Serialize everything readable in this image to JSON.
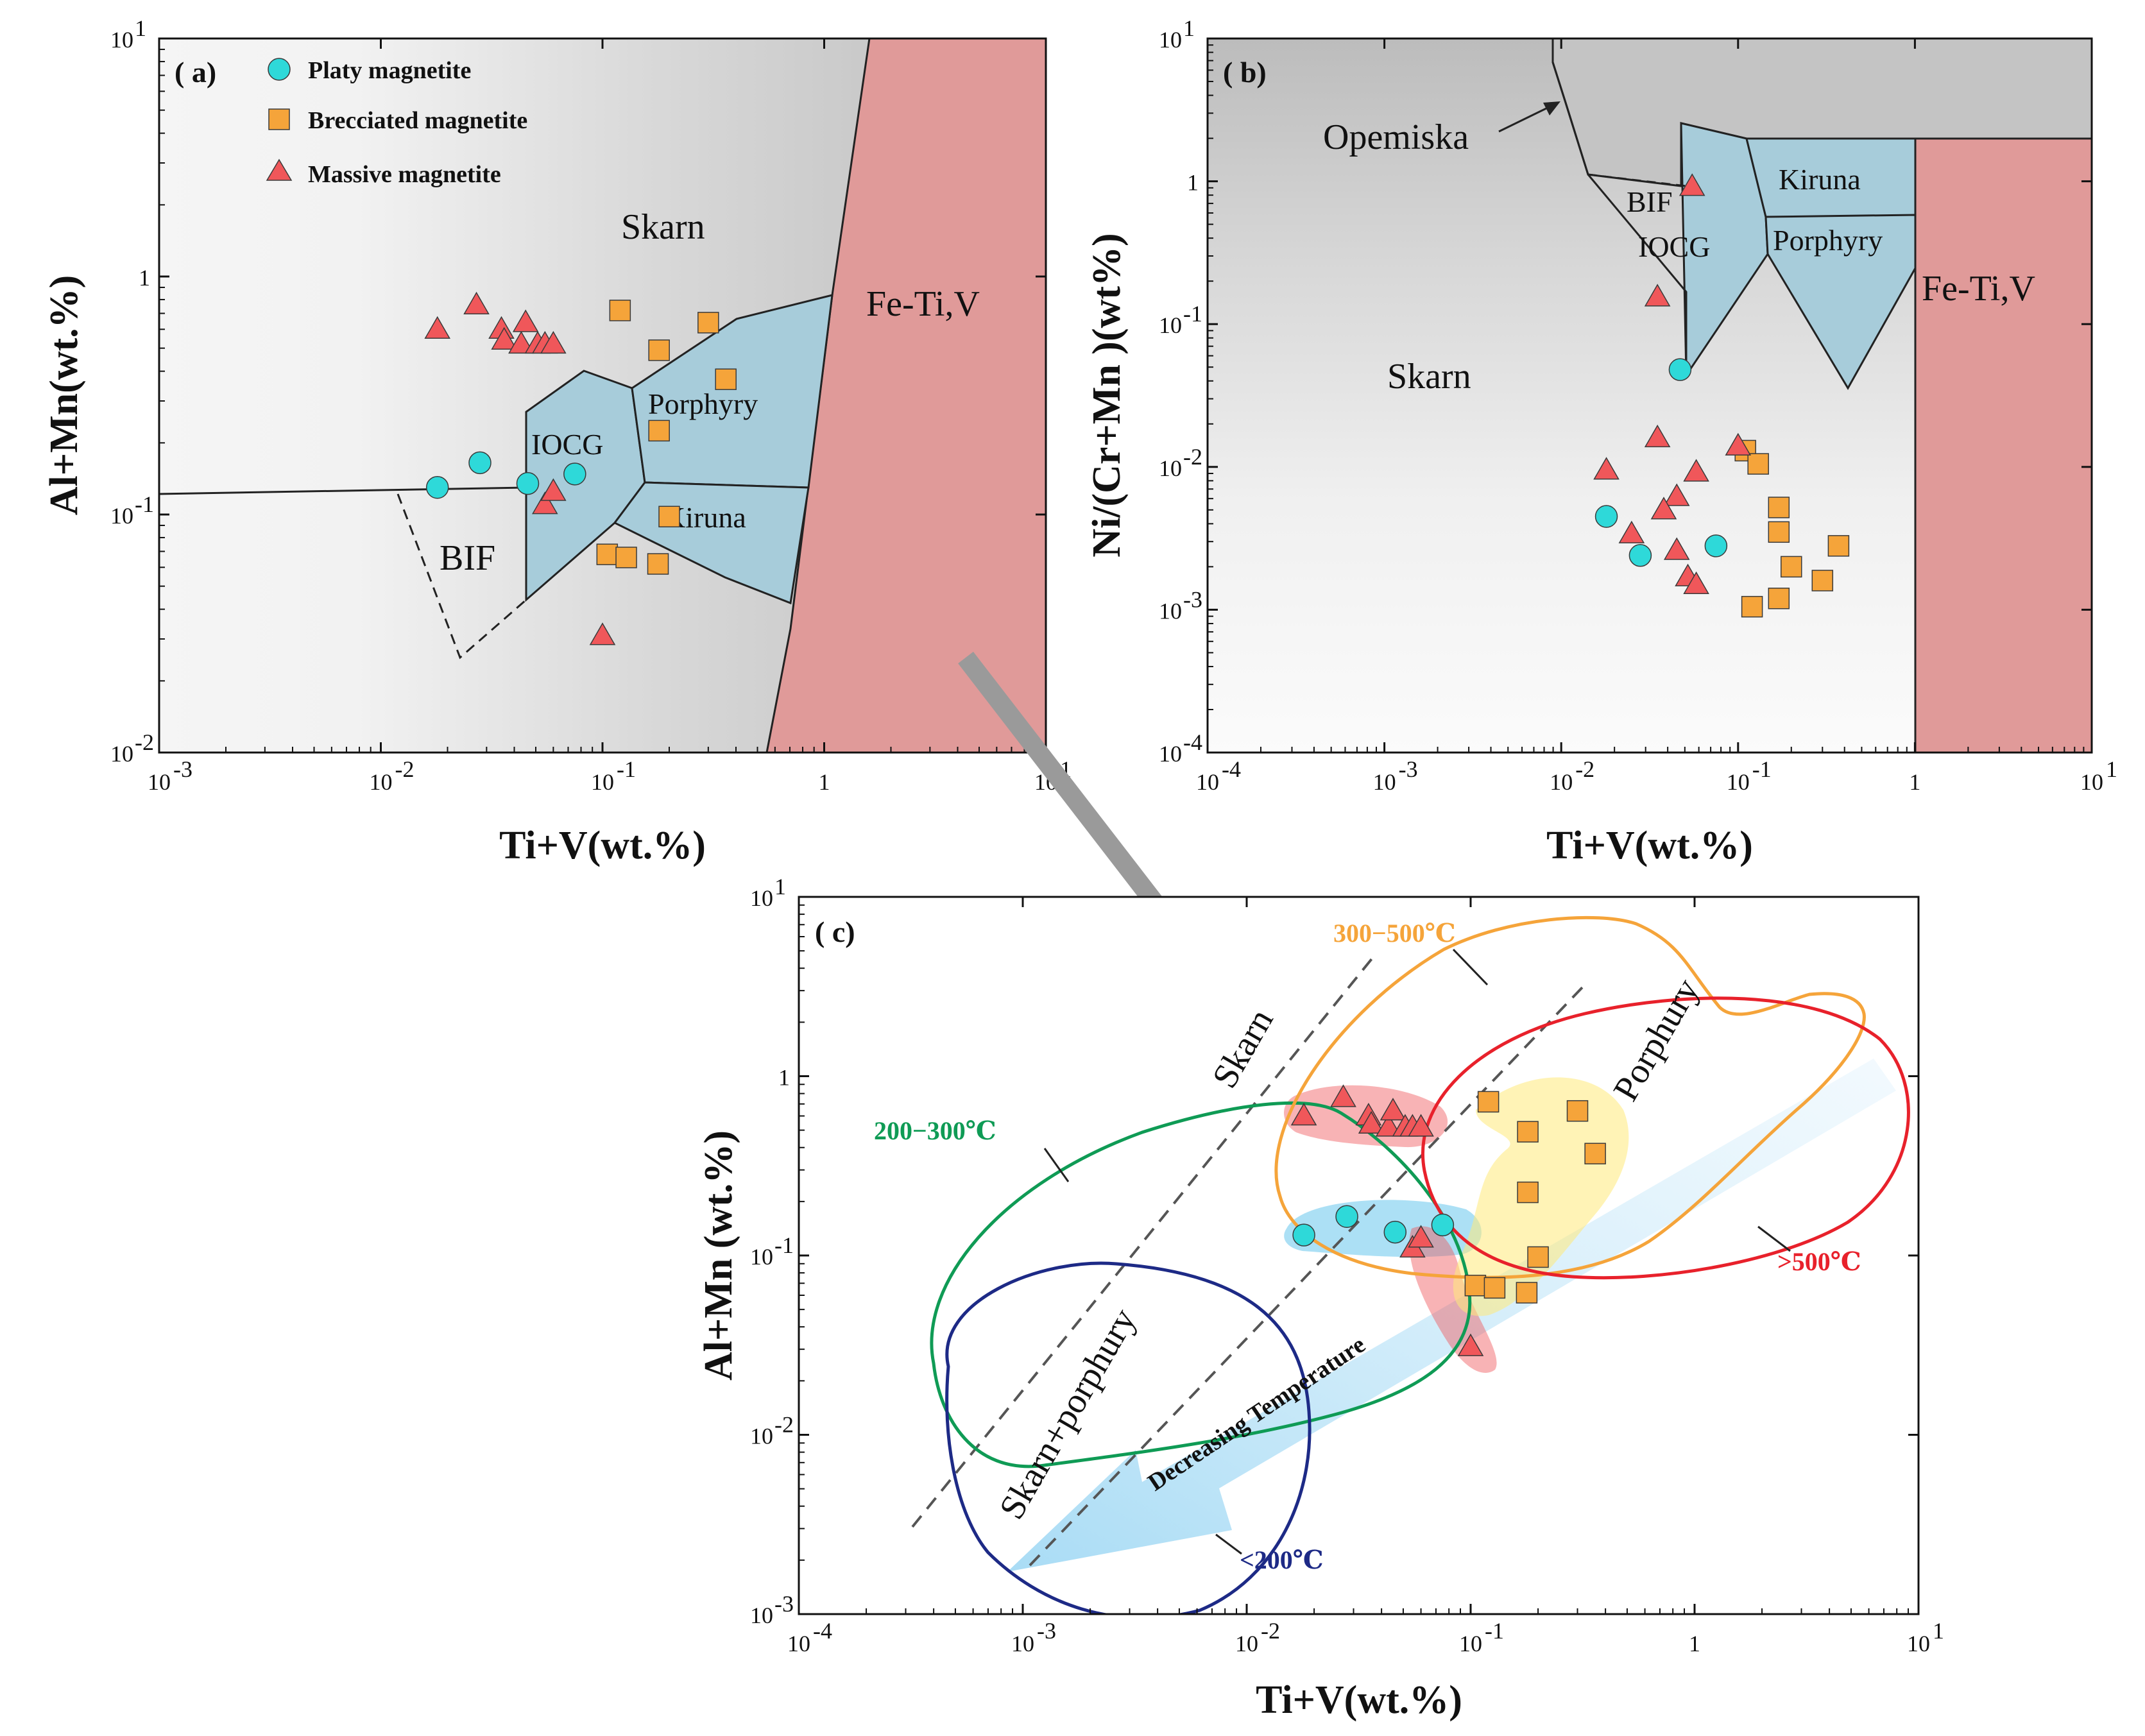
{
  "colors": {
    "platy": "#2ED9D9",
    "brecciated": "#F5A43A",
    "massive": "#F0575A",
    "fetiv": "#E09A99",
    "oreField": "#A7CCDA",
    "greyField": "#C4C4C4",
    "t200_300": "#0F9B55",
    "t300_500": "#F5A43A",
    "t500": "#E8212B",
    "t200": "#1D2A86",
    "arrow": "#9A9A9A"
  },
  "legend": {
    "platy": "Platy magnetite",
    "brecciated": "Brecciated magnetite",
    "massive": "Massive magnetite"
  },
  "samples": {
    "platy": [
      [
        0.018,
        0.13
      ],
      [
        0.028,
        0.165
      ],
      [
        0.046,
        0.135
      ],
      [
        0.075,
        0.148
      ]
    ],
    "brecciated": [
      [
        0.12,
        0.72
      ],
      [
        0.18,
        0.49
      ],
      [
        0.3,
        0.64
      ],
      [
        0.36,
        0.37
      ],
      [
        0.18,
        0.225
      ],
      [
        0.2,
        0.098
      ],
      [
        0.105,
        0.068
      ],
      [
        0.128,
        0.066
      ],
      [
        0.178,
        0.062
      ]
    ],
    "massive": [
      [
        0.018,
        0.6
      ],
      [
        0.027,
        0.76
      ],
      [
        0.035,
        0.6
      ],
      [
        0.036,
        0.54
      ],
      [
        0.043,
        0.52
      ],
      [
        0.045,
        0.64
      ],
      [
        0.051,
        0.52
      ],
      [
        0.055,
        0.52
      ],
      [
        0.06,
        0.52
      ],
      [
        0.055,
        0.11
      ],
      [
        0.06,
        0.125
      ],
      [
        0.1,
        0.031
      ]
    ]
  },
  "samples_b": {
    "platy": [
      [
        0.018,
        0.0045
      ],
      [
        0.028,
        0.0024
      ],
      [
        0.075,
        0.0028
      ],
      [
        0.047,
        0.048
      ]
    ],
    "brecciated": [
      [
        0.11,
        0.013
      ],
      [
        0.13,
        0.0105
      ],
      [
        0.17,
        0.0052
      ],
      [
        0.17,
        0.0035
      ],
      [
        0.2,
        0.002
      ],
      [
        0.3,
        0.0016
      ],
      [
        0.17,
        0.0012
      ],
      [
        0.12,
        0.00105
      ],
      [
        0.37,
        0.0028
      ]
    ],
    "massive": [
      [
        0.055,
        0.92
      ],
      [
        0.035,
        0.155
      ],
      [
        0.018,
        0.0095
      ],
      [
        0.035,
        0.016
      ],
      [
        0.1,
        0.014
      ],
      [
        0.058,
        0.0092
      ],
      [
        0.045,
        0.0062
      ],
      [
        0.038,
        0.005
      ],
      [
        0.025,
        0.0034
      ],
      [
        0.045,
        0.0026
      ],
      [
        0.052,
        0.0017
      ],
      [
        0.058,
        0.0015
      ]
    ]
  },
  "chart_data": [
    {
      "type": "scatter",
      "panel": "( a)",
      "xlabel": "Ti+V(wt.%)",
      "ylabel": "Al+Mn(wt.%)",
      "xscale": "log",
      "yscale": "log",
      "xlim": [
        0.001,
        10
      ],
      "ylim": [
        0.01,
        10
      ],
      "xticks": [
        [
          "10",
          "-3"
        ],
        [
          "10",
          "-2"
        ],
        [
          "10",
          "-1"
        ],
        [
          "1",
          ""
        ],
        [
          "10",
          "1"
        ]
      ],
      "yticks": [
        [
          "10",
          "-2"
        ],
        [
          "10",
          "-1"
        ],
        [
          "1",
          ""
        ],
        [
          "10",
          "1"
        ]
      ],
      "regions": [
        "Skarn",
        "Fe-Ti,V",
        "Porphyry",
        "IOCG",
        "Kiruna",
        "BIF"
      ],
      "series": [
        "Platy magnetite",
        "Brecciated magnetite",
        "Massive magnetite"
      ]
    },
    {
      "type": "scatter",
      "panel": "( b)",
      "xlabel": "Ti+V(wt.%)",
      "ylabel": "Ni/(Cr+Mn )(wt%)",
      "xscale": "log",
      "yscale": "log",
      "xlim": [
        0.0001,
        10
      ],
      "ylim": [
        0.0001,
        10
      ],
      "xticks": [
        [
          "10",
          "-4"
        ],
        [
          "10",
          "-3"
        ],
        [
          "10",
          "-2"
        ],
        [
          "10",
          "-1"
        ],
        [
          "1",
          ""
        ],
        [
          "10",
          "1"
        ]
      ],
      "yticks": [
        [
          "10",
          "-4"
        ],
        [
          "10",
          "-3"
        ],
        [
          "10",
          "-2"
        ],
        [
          "10",
          "-1"
        ],
        [
          "1",
          ""
        ],
        [
          "10",
          "1"
        ]
      ],
      "regions": [
        "Opemiska",
        "Kiruna",
        "BIF",
        "IOCG",
        "Porphyry",
        "Skarn",
        "Fe-Ti,V"
      ],
      "series": [
        "Platy magnetite",
        "Brecciated magnetite",
        "Massive magnetite"
      ]
    },
    {
      "type": "scatter",
      "panel": "( c)",
      "xlabel": "Ti+V(wt.%)",
      "ylabel": "Al+Mn (wt.%)",
      "xscale": "log",
      "yscale": "log",
      "xlim": [
        0.0001,
        10
      ],
      "ylim": [
        0.001,
        10
      ],
      "xticks": [
        [
          "10",
          "-4"
        ],
        [
          "10",
          "-3"
        ],
        [
          "10",
          "-2"
        ],
        [
          "10",
          "-1"
        ],
        [
          "1",
          ""
        ],
        [
          "10",
          "1"
        ]
      ],
      "yticks": [
        [
          "10",
          "-3"
        ],
        [
          "10",
          "-2"
        ],
        [
          "10",
          "-1"
        ],
        [
          "1",
          ""
        ],
        [
          "10",
          "1"
        ]
      ],
      "fields": [
        "Skarn",
        "Porphury",
        "Skarn+porphury"
      ],
      "temperature_fields": [
        "200−300℃",
        "300−500℃",
        ">500℃",
        "<200℃"
      ],
      "trend": "Decreasing Temperature"
    }
  ]
}
